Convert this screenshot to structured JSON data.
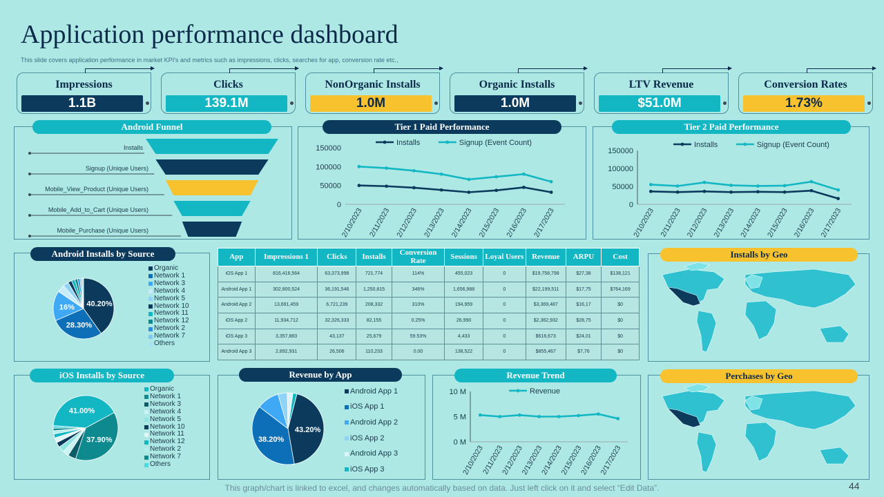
{
  "header": {
    "title": "Application performance dashboard",
    "subtitle": "This slide covers application performance in market KPI's  and metrics such as impressions, clicks, searches for app, conversion rate etc.,"
  },
  "kpis": [
    {
      "label": "Impressions",
      "value": "1.1B",
      "color": "#0b3a5c",
      "text_color": "#ffffff"
    },
    {
      "label": "Clicks",
      "value": "139.1M",
      "color": "#13b7c3",
      "text_color": "#ffffff"
    },
    {
      "label": "NonOrganic Installs",
      "value": "1.0M",
      "color": "#f8c12e",
      "text_color": "#0b2a4a"
    },
    {
      "label": "Organic Installs",
      "value": "1.0M",
      "color": "#0b3a5c",
      "text_color": "#ffffff"
    },
    {
      "label": "LTV Revenue",
      "value": "$51.0M",
      "color": "#13b7c3",
      "text_color": "#ffffff"
    },
    {
      "label": "Conversion Rates",
      "value": "1.73%",
      "color": "#f8c12e",
      "text_color": "#0b2a4a"
    }
  ],
  "panels": {
    "android_funnel": "Android Funnel",
    "tier1": "Tier 1 Paid Performance",
    "tier2": "Tier 2 Paid Performance",
    "android_installs": "Android Installs by Source",
    "installs_geo": "Installs by Geo",
    "ios_installs": "iOS Installs by Source",
    "revenue_by_app": "Revenue by App",
    "revenue_trend": "Revenue Trend",
    "purchases_geo": "Perchases by Geo"
  },
  "colors": {
    "navy": "#0b3a5c",
    "teal": "#13b7c3",
    "yellow": "#f8c12e",
    "background": "#ade8e4"
  },
  "chart_data": [
    {
      "id": "android_funnel",
      "type": "bar",
      "title": "Android Funnel",
      "categories": [
        "Installs",
        "Signup (Unique Users)",
        "Mobile_View_Product  (Unique Users)",
        "Mobile_Add_to_Cart (Unique Users)",
        "Mobile_Purchase (Unique Users)"
      ],
      "values": [
        100,
        85,
        70,
        58,
        45
      ],
      "colors": [
        "#13b7c3",
        "#0b3a5c",
        "#f8c12e",
        "#13b7c3",
        "#0b3a5c"
      ]
    },
    {
      "id": "tier1",
      "type": "line",
      "title": "Tier 1 Paid Performance",
      "x": [
        "2/10/2023",
        "2/11/2023",
        "2/12/2023",
        "2/13/2023",
        "2/14/2023",
        "2/15/2023",
        "2/16/2023",
        "2/17/2023"
      ],
      "ylim": [
        0,
        150000
      ],
      "yticks": [
        "0",
        "50000",
        "100000",
        "150000"
      ],
      "series": [
        {
          "name": "Installs",
          "values": [
            50000,
            48000,
            44000,
            38000,
            32000,
            37000,
            45000,
            32000
          ],
          "color": "#0b3a5c"
        },
        {
          "name": "Signup (Event Count)",
          "values": [
            100000,
            96000,
            89000,
            80000,
            66000,
            73000,
            80000,
            60000
          ],
          "color": "#13b7c3"
        }
      ]
    },
    {
      "id": "tier2",
      "type": "line",
      "title": "Tier 2 Paid Performance",
      "x": [
        "2/10/2023",
        "2/11/2023",
        "2/12/2023",
        "2/13/2023",
        "2/14/2023",
        "2/15/2023",
        "2/16/2023",
        "2/17/2023"
      ],
      "ylim": [
        0,
        150000
      ],
      "yticks": [
        "0",
        "50000",
        "100000",
        "150000"
      ],
      "series": [
        {
          "name": "Installs",
          "values": [
            36000,
            34000,
            36000,
            34000,
            35000,
            34000,
            38000,
            16000
          ],
          "color": "#0b3a5c"
        },
        {
          "name": "Signup (Event Count)",
          "values": [
            55000,
            51000,
            61000,
            53000,
            51000,
            52000,
            63000,
            40000
          ],
          "color": "#13b7c3"
        }
      ]
    },
    {
      "id": "android_installs",
      "type": "pie",
      "title": "Android Installs by Source",
      "categories": [
        "Organic",
        "Network 1",
        "Network 3",
        "Network 4",
        "Network 5",
        "Network 10",
        "Network 11",
        "Network 12",
        "Network 2",
        "Network 7",
        "Others"
      ],
      "values": [
        40.2,
        28.3,
        16,
        4,
        3,
        2,
        1.8,
        1.5,
        1.2,
        1,
        1
      ],
      "data_labels": [
        "40.20%",
        "28.30%",
        "16%",
        "",
        "",
        "",
        "",
        "",
        "",
        "",
        ""
      ],
      "colors": [
        "#0b3a5c",
        "#0d6fb8",
        "#3fa9f5",
        "#c9ecfb",
        "#8fd4f7",
        "#0b3a5c",
        "#13b7c3",
        "#0e8a8f",
        "#2a8ee0",
        "#7fc8ee",
        "#a6e2f0"
      ]
    },
    {
      "id": "ios_installs",
      "type": "pie",
      "title": "iOS Installs by Source",
      "categories": [
        "Organic",
        "Network 1",
        "Network 3",
        "Network 4",
        "Network 5",
        "Network 10",
        "Network 11",
        "Network 12",
        "Network 2",
        "Network 7",
        "Others"
      ],
      "values": [
        41,
        37.9,
        4,
        3,
        3,
        2.5,
        2.5,
        2,
        1.6,
        1.3,
        1.2
      ],
      "data_labels": [
        "41.00%",
        "37.90%",
        "",
        "",
        "",
        "",
        "",
        "",
        "",
        "",
        ""
      ],
      "colors": [
        "#13b7c3",
        "#0e8a8f",
        "#0b5c66",
        "#c9f4f3",
        "#8fe6e2",
        "#0b3a5c",
        "#dff7f6",
        "#13b7c3",
        "#b2eeec",
        "#0e8a8f",
        "#4fd8e0"
      ]
    },
    {
      "id": "revenue_by_app",
      "type": "pie",
      "title": "Revenue by App",
      "categories": [
        "Android App 1",
        "iOS App 1",
        "Android App 2",
        "iOS App 2",
        "Android App 3",
        "iOS App 3"
      ],
      "values": [
        43.2,
        38.2,
        10.1,
        4.2,
        2.5,
        1.8
      ],
      "data_labels": [
        "43.20%",
        "38.20%",
        "",
        "",
        "",
        ""
      ],
      "colors": [
        "#0b3a5c",
        "#0d6fb8",
        "#3fa9f5",
        "#8fd4f7",
        "#ddf3fb",
        "#13b7c3"
      ]
    },
    {
      "id": "revenue_trend",
      "type": "line",
      "title": "Revenue Trend",
      "x": [
        "2/10/2023",
        "2/11/2023",
        "2/12/2023",
        "2/13/2023",
        "2/14/2023",
        "2/15/2023",
        "2/16/2023",
        "2/17/2023"
      ],
      "ylim": [
        0,
        10
      ],
      "yticks": [
        "0 M",
        "5 M",
        "10 M"
      ],
      "series": [
        {
          "name": "Revenue",
          "values": [
            5.3,
            5.0,
            5.3,
            5.0,
            5.0,
            5.2,
            5.5,
            4.6
          ],
          "color": "#13b7c3"
        }
      ]
    },
    {
      "id": "app_table",
      "type": "table",
      "columns": [
        "App",
        "Impressions 1",
        "Clicks",
        "Installs",
        "Conversion Rate",
        "Sessions",
        "Loyal Users",
        "Revenue",
        "ARPU",
        "Cost"
      ],
      "rows": [
        [
          "iOS App 1",
          "816,416,564",
          "63,373,998",
          "721,774",
          "114%",
          "455,023",
          "0",
          "$19,758,798",
          "$27,38",
          "$138,121"
        ],
        [
          "Android App 1",
          "302,800,524",
          "36,191,546",
          "1,250,815",
          "346%",
          "1,656,988",
          "0",
          "$22,199,511",
          "$17,75",
          "$764,169"
        ],
        [
          "Android App 2",
          "13,691,459",
          "6,721,239",
          "208,332",
          "310%",
          "194,959",
          "0",
          "$3,369,487",
          "$16,17",
          "$0"
        ],
        [
          "iOS App 2",
          "11,934,712",
          "32,326,333",
          "82,155",
          "0.25%",
          "26,990",
          "0",
          "$2,362,932",
          "$28,75",
          "$0"
        ],
        [
          "iOS App 3",
          "3,357,883",
          "43,137",
          "25,679",
          "59.53%",
          "4,433",
          "0",
          "$616,673",
          "$24,01",
          "$0"
        ],
        [
          "Android App 3",
          "2,892,931",
          "26,506",
          "110,233",
          "0.00",
          "138,522",
          "0",
          "$855,467",
          "$7,76",
          "$0"
        ]
      ]
    }
  ],
  "footer": {
    "note": "This graph/chart is linked to excel, and changes automatically based on data. Just left click on it and select “Edit Data”.",
    "page": "44"
  }
}
